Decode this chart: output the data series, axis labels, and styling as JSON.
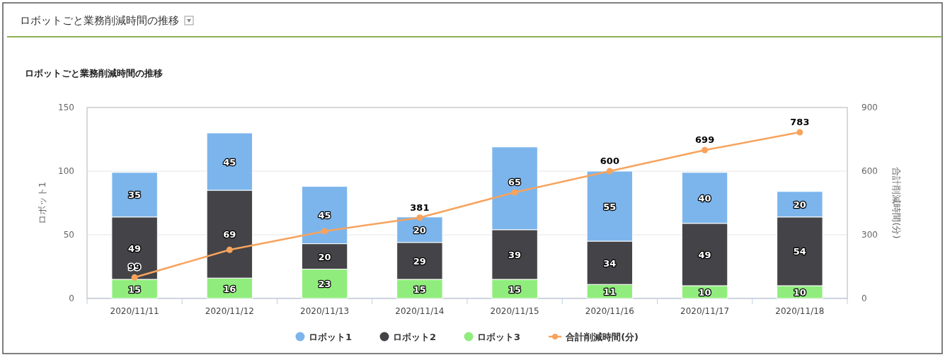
{
  "chart_data": {
    "type": "bar",
    "title": "ロボットごと業務削減時間の推移",
    "subtitle": "ロボットごと業務削減時間の推移",
    "ylabel": "ロボット1",
    "y2label": "合計削減時間(分)",
    "categories": [
      "2020/11/11",
      "2020/11/12",
      "2020/11/13",
      "2020/11/14",
      "2020/11/15",
      "2020/11/16",
      "2020/11/17",
      "2020/11/18"
    ],
    "stacked": true,
    "grid": "y",
    "legend": "bottom",
    "ylim": [
      0,
      150
    ],
    "yticks": [
      0,
      50,
      100,
      150
    ],
    "y2lim": [
      0,
      900
    ],
    "y2ticks": [
      0,
      300,
      600,
      900
    ],
    "series": [
      {
        "name": "ロボット3",
        "color": "#90ed7d",
        "values": [
          15,
          16,
          23,
          15,
          15,
          11,
          10,
          10
        ],
        "value_labels": [
          "15",
          "16",
          "23",
          "15",
          "15",
          "11",
          "10",
          "10"
        ]
      },
      {
        "name": "ロボット2",
        "color": "#434348",
        "values": [
          49,
          69,
          20,
          29,
          39,
          34,
          49,
          54
        ],
        "value_labels": [
          "49",
          "69",
          "20",
          "29",
          "39",
          "34",
          "49",
          "54"
        ]
      },
      {
        "name": "ロボット1",
        "color": "#7cb5ec",
        "values": [
          35,
          45,
          45,
          20,
          65,
          55,
          40,
          20
        ],
        "value_labels": [
          "35",
          "45",
          "45",
          "20",
          "65",
          "55",
          "40",
          "20"
        ]
      },
      {
        "name": "合計削減時間(分)",
        "type": "line",
        "axis": "y2",
        "marker": "circle",
        "color": "#f7a35c",
        "values": [
          99,
          229,
          317,
          381,
          500,
          600,
          699,
          783
        ],
        "value_labels": [
          "99",
          null,
          null,
          "381",
          null,
          "600",
          "699",
          "783"
        ]
      }
    ]
  }
}
